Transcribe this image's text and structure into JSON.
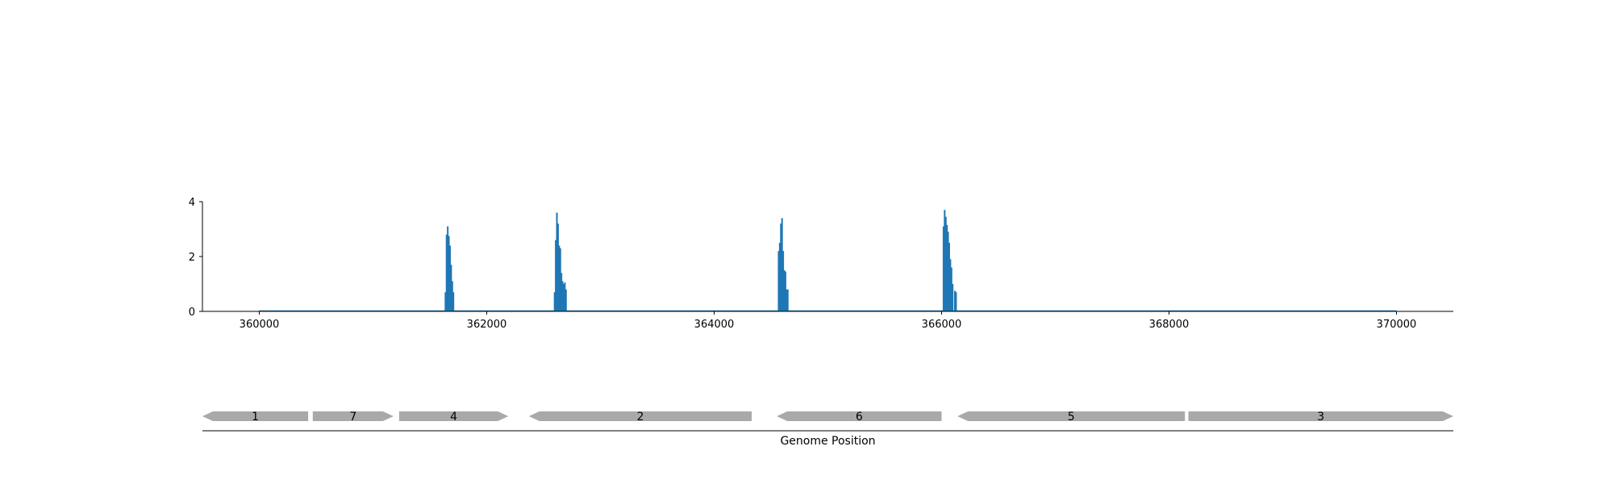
{
  "chart_data": [
    {
      "type": "bar",
      "title": "",
      "xlabel": "",
      "ylabel": "",
      "xlim": [
        359500,
        370500
      ],
      "ylim": [
        0,
        4
      ],
      "yticks": [
        "0",
        "2",
        "4"
      ],
      "xticks": [
        "360000",
        "362000",
        "364000",
        "366000",
        "368000",
        "370000"
      ],
      "x_tick_values": [
        360000,
        362000,
        364000,
        366000,
        368000,
        370000
      ],
      "y_tick_values": [
        0,
        2,
        4
      ],
      "color": "#1f77b4",
      "baseline": {
        "x": [
          360000,
          370000
        ],
        "y": 0
      },
      "x": [
        361630,
        361640,
        361650,
        361660,
        361670,
        361680,
        361690,
        361700,
        362590,
        362600,
        362610,
        362620,
        362630,
        362640,
        362650,
        362660,
        362670,
        362680,
        362690,
        364560,
        364570,
        364580,
        364590,
        364600,
        364610,
        364620,
        364630,
        364640,
        366010,
        366020,
        366030,
        366040,
        366050,
        366060,
        366070,
        366080,
        366090,
        366100,
        366110,
        366120
      ],
      "values": [
        0.7,
        2.8,
        3.1,
        2.75,
        2.4,
        1.7,
        1.1,
        0.7,
        0.7,
        2.6,
        3.6,
        3.2,
        2.4,
        2.3,
        1.4,
        1.1,
        1.0,
        1.05,
        0.8,
        2.2,
        2.5,
        3.2,
        3.4,
        2.2,
        1.5,
        1.45,
        0.8,
        0.8,
        3.1,
        3.7,
        3.45,
        3.15,
        2.9,
        2.5,
        1.9,
        1.6,
        1.0,
        0.0,
        0.75,
        0.7
      ]
    },
    {
      "type": "gene_track",
      "xlabel": "Genome Position",
      "xlim": [
        359500,
        370500
      ],
      "color": "#a9a9a9",
      "genes": [
        {
          "label": "1",
          "start": 359500,
          "end": 360430,
          "strand": "-"
        },
        {
          "label": "7",
          "start": 360470,
          "end": 361180,
          "strand": "+"
        },
        {
          "label": "4",
          "start": 361230,
          "end": 362190,
          "strand": "+"
        },
        {
          "label": "2",
          "start": 362370,
          "end": 364330,
          "strand": "-"
        },
        {
          "label": "6",
          "start": 364550,
          "end": 366000,
          "strand": "-"
        },
        {
          "label": "5",
          "start": 366140,
          "end": 368140,
          "strand": "-"
        },
        {
          "label": "3",
          "start": 368170,
          "end": 370500,
          "strand": "+"
        }
      ]
    }
  ]
}
